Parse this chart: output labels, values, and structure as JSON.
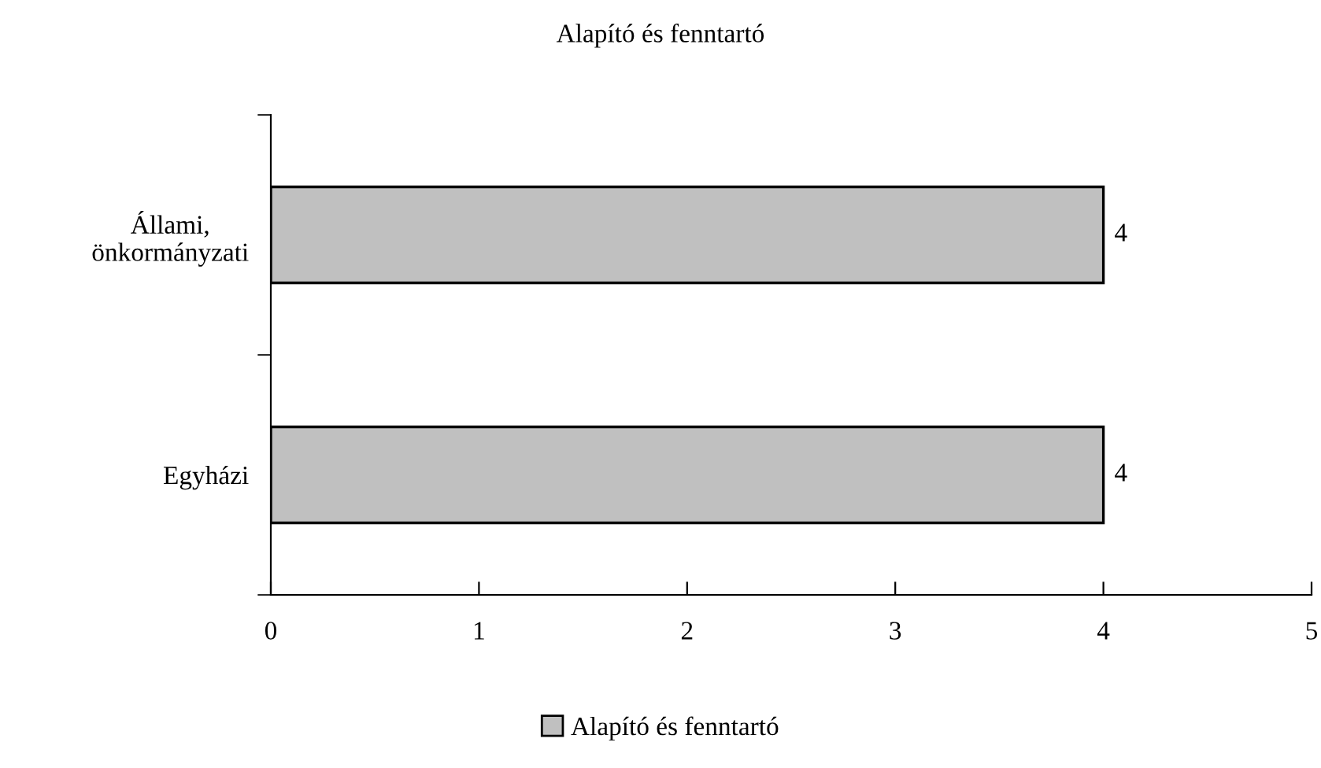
{
  "chart_data": {
    "type": "bar",
    "orientation": "horizontal",
    "title": "Alapító és fenntartó",
    "categories": [
      "Állami,\nönkormányzati",
      "Egyházi"
    ],
    "series": [
      {
        "name": "Alapító és fenntartó",
        "color": "#c0c0c0",
        "values": [
          4,
          4
        ]
      }
    ],
    "xlim": [
      0,
      5
    ],
    "xticks": [
      0,
      1,
      2,
      3,
      4,
      5
    ],
    "data_labels": true,
    "legend": "bottom",
    "grid": false
  }
}
